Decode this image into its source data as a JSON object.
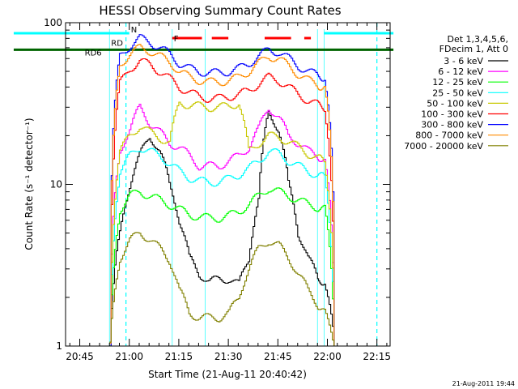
{
  "chart_data": {
    "type": "line",
    "title": "HESSI Observing Summary Count Rates",
    "xlabel": "Start Time (21-Aug-11 20:40:42)",
    "ylabel": "Count Rate (s⁻¹ detector⁻¹)",
    "y_scale": "log",
    "ylim": [
      1,
      100
    ],
    "xlim": [
      "20:40:42",
      "22:19:00"
    ],
    "x_ticks": [
      "20:45",
      "21:00",
      "21:15",
      "21:30",
      "21:45",
      "22:00",
      "22:15"
    ],
    "x_tick_minutes": [
      285,
      300,
      315,
      330,
      345,
      360,
      375
    ],
    "y_ticks": [
      "1",
      "10",
      "100"
    ],
    "y_tick_values": [
      1,
      10,
      100
    ],
    "grid": false,
    "legend_position": "right",
    "legend_header": [
      "Det 1,3,4,5,6,",
      "FDecim 1, Att 0"
    ],
    "footer_date": "21-Aug-2011 19:44",
    "annotations": {
      "N": "N",
      "F": "F",
      "RD6": "RD6",
      "RD_partial": "RD"
    },
    "overlays": {
      "night_cyan_start": 265,
      "night_cyan_end": 300,
      "night_cyan2_start": 359,
      "night_cyan2_end": 380,
      "dashed_lines": [
        299,
        375
      ],
      "saa_lines_x": [
        294,
        313,
        323,
        357,
        359
      ],
      "rd6_level": 68,
      "rd6_start": 265,
      "rd6_end": 380,
      "flare_segments": [
        [
          313,
          322
        ],
        [
          325,
          330
        ],
        [
          341,
          349
        ],
        [
          353,
          355
        ]
      ]
    },
    "series": [
      {
        "name": "3 - 6 keV",
        "color": "#000000",
        "x": [
          294,
          297,
          300,
          303,
          306,
          309,
          312,
          315,
          318,
          321,
          324,
          327,
          330,
          333,
          336,
          339,
          342,
          345,
          348,
          351,
          354,
          357,
          359,
          362
        ],
        "y": [
          1,
          5,
          10,
          15,
          20,
          16,
          10,
          6,
          3.5,
          2.8,
          2.5,
          2.6,
          2.6,
          2.4,
          3.5,
          8,
          28,
          22,
          10,
          5,
          3.5,
          2.6,
          2.5,
          1
        ]
      },
      {
        "name": "6 - 12 keV",
        "color": "#ff00ff",
        "x": [
          294,
          297,
          300,
          303,
          306,
          309,
          312,
          315,
          318,
          321,
          324,
          327,
          330,
          333,
          336,
          339,
          342,
          345,
          348,
          351,
          354,
          357,
          359,
          362
        ],
        "y": [
          1,
          16,
          22,
          30,
          24,
          21,
          18,
          17,
          15,
          13,
          13,
          13,
          14,
          15,
          17,
          22,
          30,
          26,
          20,
          18,
          16,
          15,
          14,
          1
        ]
      },
      {
        "name": "12 - 25 keV",
        "color": "#00ff00",
        "x": [
          294,
          297,
          300,
          303,
          306,
          309,
          312,
          315,
          318,
          321,
          324,
          327,
          330,
          333,
          336,
          339,
          342,
          345,
          348,
          351,
          354,
          357,
          359,
          362
        ],
        "y": [
          1,
          7,
          8.5,
          9,
          8.5,
          8,
          7.5,
          7,
          6.5,
          6.3,
          6.2,
          6.2,
          6.4,
          6.8,
          7.5,
          8.5,
          9.5,
          9,
          8.5,
          8,
          7.5,
          7.2,
          7,
          1
        ]
      },
      {
        "name": "25 - 50 keV",
        "color": "#00ffff",
        "x": [
          294,
          297,
          300,
          303,
          306,
          309,
          312,
          315,
          318,
          321,
          324,
          327,
          330,
          333,
          336,
          339,
          342,
          345,
          348,
          351,
          354,
          357,
          359,
          362
        ],
        "y": [
          1,
          12,
          15,
          17,
          16,
          15,
          13.5,
          12,
          11,
          10.5,
          10.3,
          10.4,
          10.8,
          11.5,
          12.5,
          14,
          16,
          15.5,
          14,
          13,
          12,
          11.5,
          11,
          1
        ]
      },
      {
        "name": "50 - 100 keV",
        "color": "#c8c800",
        "x": [
          294,
          297,
          300,
          303,
          306,
          309,
          312,
          315,
          318,
          321,
          324,
          327,
          330,
          333,
          336,
          339,
          342,
          345,
          348,
          351,
          354,
          357,
          359,
          362
        ],
        "y": [
          1,
          16,
          20,
          23,
          21,
          19.5,
          18,
          32,
          31,
          30.5,
          30,
          30,
          30.5,
          32,
          16,
          18,
          20,
          19.5,
          18.5,
          17,
          15.5,
          14.5,
          14,
          1
        ]
      },
      {
        "name": "100 - 300 keV",
        "color": "#ff0000",
        "x": [
          294,
          297,
          300,
          303,
          306,
          309,
          312,
          315,
          318,
          321,
          324,
          327,
          330,
          333,
          336,
          339,
          342,
          345,
          348,
          351,
          354,
          357,
          359,
          362
        ],
        "y": [
          1,
          42,
          52,
          58,
          55,
          50,
          45,
          40,
          37,
          35,
          34,
          34,
          35,
          36,
          38,
          42,
          46,
          44,
          40,
          36,
          33,
          31,
          30,
          1
        ]
      },
      {
        "name": "300 - 800 keV",
        "color": "#0000ff",
        "x": [
          294,
          297,
          300,
          303,
          306,
          309,
          312,
          315,
          318,
          321,
          324,
          327,
          330,
          333,
          336,
          339,
          342,
          345,
          348,
          351,
          354,
          357,
          359,
          362
        ],
        "y": [
          1,
          62,
          72,
          80,
          76,
          70,
          64,
          56,
          52,
          50,
          49,
          49,
          50,
          52,
          56,
          62,
          68,
          66,
          60,
          54,
          50,
          47,
          46,
          1
        ]
      },
      {
        "name": "800 - 7000 keV",
        "color": "#ff8c00",
        "x": [
          294,
          297,
          300,
          303,
          306,
          309,
          312,
          315,
          318,
          321,
          324,
          327,
          330,
          333,
          336,
          339,
          342,
          345,
          348,
          351,
          354,
          357,
          359,
          362
        ],
        "y": [
          1,
          55,
          64,
          70,
          67,
          62,
          57,
          50,
          46,
          44,
          43,
          43,
          44,
          46,
          50,
          56,
          62,
          60,
          54,
          48,
          44,
          41,
          40,
          1
        ]
      },
      {
        "name": "7000 - 20000 keV",
        "color": "#808000",
        "x": [
          294,
          297,
          300,
          303,
          306,
          309,
          312,
          315,
          318,
          321,
          324,
          327,
          330,
          333,
          336,
          339,
          342,
          345,
          348,
          351,
          354,
          357,
          359,
          362
        ],
        "y": [
          1,
          3.5,
          4.5,
          5,
          4.6,
          4,
          3.4,
          2.2,
          1.6,
          1.5,
          1.5,
          1.5,
          1.6,
          2,
          3,
          4,
          4.5,
          4.2,
          3.5,
          2.8,
          2.2,
          1.8,
          1.6,
          1
        ]
      }
    ]
  }
}
